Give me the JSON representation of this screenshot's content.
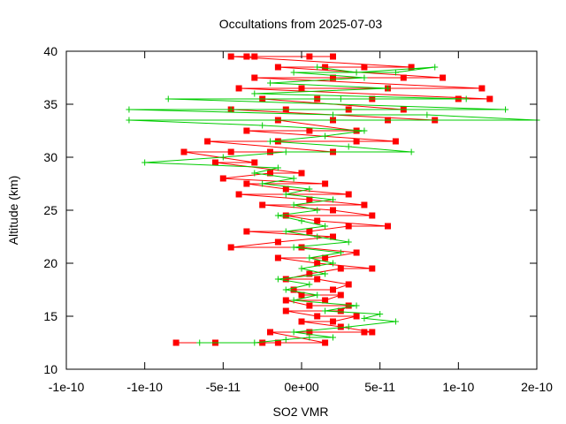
{
  "chart_data": {
    "type": "line",
    "title": "Occultations from 2025-07-03",
    "xlabel": "SO2 VMR",
    "ylabel": "Altitude (km)",
    "xlim": [
      -1.5e-10,
      1.5e-10
    ],
    "ylim": [
      10,
      40
    ],
    "x_ticks": [
      {
        "value": -1.5e-10,
        "label": "-1e-10"
      },
      {
        "value": -1e-10,
        "label": "-1e-10"
      },
      {
        "value": -5e-11,
        "label": "-5e-11"
      },
      {
        "value": 0,
        "label": "0e+00"
      },
      {
        "value": 5e-11,
        "label": "5e-11"
      },
      {
        "value": 1e-10,
        "label": "1e-10"
      },
      {
        "value": 1.5e-10,
        "label": "2e-10"
      }
    ],
    "y_ticks": [
      {
        "value": 10,
        "label": "10"
      },
      {
        "value": 15,
        "label": "15"
      },
      {
        "value": 20,
        "label": "20"
      },
      {
        "value": 25,
        "label": "25"
      },
      {
        "value": 30,
        "label": "30"
      },
      {
        "value": 35,
        "label": "35"
      },
      {
        "value": 40,
        "label": "40"
      }
    ],
    "grid": false,
    "legend": "none",
    "series": [
      {
        "color": "#ff0000",
        "marker": "square",
        "points": [
          [
            -8e-11,
            12.5
          ],
          [
            -5.5e-11,
            12.5
          ],
          [
            -2.5e-11,
            12.5
          ],
          [
            -1.5e-11,
            12.5
          ],
          [
            1.5e-11,
            12.5
          ],
          [
            -2e-11,
            13.5
          ],
          [
            5e-12,
            13.5
          ],
          [
            4e-11,
            13.5
          ],
          [
            4.5e-11,
            13.5
          ],
          [
            2.5e-11,
            14.0
          ],
          [
            0.0,
            14.5
          ],
          [
            2e-11,
            14.5
          ],
          [
            3.5e-11,
            15.0
          ],
          [
            1e-11,
            15.0
          ],
          [
            -1e-11,
            15.5
          ],
          [
            2.5e-11,
            15.5
          ],
          [
            3e-11,
            16.0
          ],
          [
            5e-12,
            16.0
          ],
          [
            -1e-11,
            16.5
          ],
          [
            1.5e-11,
            16.5
          ],
          [
            2.5e-11,
            17.0
          ],
          [
            0.0,
            17.0
          ],
          [
            -5e-12,
            17.5
          ],
          [
            2e-11,
            17.5
          ],
          [
            3e-11,
            18.0
          ],
          [
            1e-11,
            18.5
          ],
          [
            -1e-11,
            18.5
          ],
          [
            5e-12,
            19.0
          ],
          [
            2.5e-11,
            19.5
          ],
          [
            4.5e-11,
            19.5
          ],
          [
            1e-11,
            20.0
          ],
          [
            -1.5e-11,
            20.5
          ],
          [
            1.5e-11,
            20.5
          ],
          [
            3.5e-11,
            21.0
          ],
          [
            0.0,
            21.5
          ],
          [
            -4.5e-11,
            21.5
          ],
          [
            -1.5e-11,
            22.0
          ],
          [
            2e-11,
            22.5
          ],
          [
            -3.5e-11,
            23.0
          ],
          [
            5e-12,
            23.0
          ],
          [
            3e-11,
            23.5
          ],
          [
            5.5e-11,
            23.5
          ],
          [
            1e-11,
            24.0
          ],
          [
            -1e-11,
            24.5
          ],
          [
            4.5e-11,
            24.5
          ],
          [
            2e-11,
            25.0
          ],
          [
            -2.5e-11,
            25.5
          ],
          [
            4e-11,
            25.5
          ],
          [
            5e-12,
            26.0
          ],
          [
            -4e-11,
            26.5
          ],
          [
            3e-11,
            26.5
          ],
          [
            -1e-11,
            27.0
          ],
          [
            -3.5e-11,
            27.5
          ],
          [
            1.5e-11,
            27.5
          ],
          [
            -5e-11,
            28.0
          ],
          [
            -2e-11,
            28.5
          ],
          [
            0.0,
            28.5
          ],
          [
            -5.5e-11,
            29.5
          ],
          [
            -3e-11,
            29.5
          ],
          [
            -7.5e-11,
            30.5
          ],
          [
            -4.5e-11,
            30.5
          ],
          [
            -2e-11,
            30.5
          ],
          [
            2e-11,
            30.5
          ],
          [
            -6e-11,
            31.5
          ],
          [
            -1.5e-11,
            31.5
          ],
          [
            3.5e-11,
            31.5
          ],
          [
            6e-11,
            31.5
          ],
          [
            -3.5e-11,
            32.5
          ],
          [
            5e-12,
            32.5
          ],
          [
            3.5e-11,
            32.5
          ],
          [
            -1.5e-11,
            33.5
          ],
          [
            2e-11,
            33.5
          ],
          [
            5.5e-11,
            33.5
          ],
          [
            8.5e-11,
            33.5
          ],
          [
            -4.5e-11,
            34.5
          ],
          [
            -1e-11,
            34.5
          ],
          [
            3e-11,
            34.5
          ],
          [
            6.5e-11,
            34.5
          ],
          [
            -2.5e-11,
            35.5
          ],
          [
            1e-11,
            35.5
          ],
          [
            4.5e-11,
            35.5
          ],
          [
            1e-10,
            35.5
          ],
          [
            1.2e-10,
            35.5
          ],
          [
            -4e-11,
            36.5
          ],
          [
            0.0,
            36.5
          ],
          [
            5.5e-11,
            36.5
          ],
          [
            1.15e-10,
            36.5
          ],
          [
            -3e-11,
            37.5
          ],
          [
            2e-11,
            37.5
          ],
          [
            6.5e-11,
            37.5
          ],
          [
            9e-11,
            37.5
          ],
          [
            -1.5e-11,
            38.5
          ],
          [
            1.5e-11,
            38.5
          ],
          [
            4e-11,
            38.5
          ],
          [
            7e-11,
            38.5
          ],
          [
            -4.5e-11,
            39.5
          ],
          [
            -3.5e-11,
            39.5
          ],
          [
            -3e-11,
            39.5
          ],
          [
            5e-12,
            39.5
          ],
          [
            2e-11,
            39.5
          ]
        ]
      },
      {
        "color": "#00cc00",
        "marker": "plus",
        "points": [
          [
            -6.5e-11,
            12.5
          ],
          [
            -3e-11,
            12.5
          ],
          [
            -1e-11,
            12.8
          ],
          [
            5e-12,
            13.0
          ],
          [
            2e-11,
            13.0
          ],
          [
            -5e-12,
            13.5
          ],
          [
            3e-11,
            14.0
          ],
          [
            6e-11,
            14.5
          ],
          [
            4e-11,
            14.8
          ],
          [
            5e-11,
            15.2
          ],
          [
            1.5e-11,
            15.5
          ],
          [
            3.5e-11,
            16.0
          ],
          [
            -5e-12,
            16.5
          ],
          [
            1e-11,
            17.0
          ],
          [
            -1e-11,
            17.5
          ],
          [
            5e-12,
            18.0
          ],
          [
            -1.5e-11,
            18.5
          ],
          [
            1.5e-11,
            19.0
          ],
          [
            0.0,
            19.5
          ],
          [
            2e-11,
            20.0
          ],
          [
            5e-12,
            20.5
          ],
          [
            2.5e-11,
            21.0
          ],
          [
            -5e-12,
            21.5
          ],
          [
            3e-11,
            22.0
          ],
          [
            1e-11,
            22.5
          ],
          [
            -1e-11,
            23.0
          ],
          [
            1.5e-11,
            23.5
          ],
          [
            0.0,
            24.0
          ],
          [
            -1.5e-11,
            24.5
          ],
          [
            1e-11,
            25.0
          ],
          [
            -5e-12,
            25.5
          ],
          [
            2e-11,
            26.0
          ],
          [
            -1e-11,
            26.5
          ],
          [
            5e-12,
            27.0
          ],
          [
            -2.5e-11,
            27.5
          ],
          [
            -5e-12,
            28.0
          ],
          [
            -3e-11,
            28.5
          ],
          [
            -1.5e-11,
            29.0
          ],
          [
            -1e-10,
            29.5
          ],
          [
            -5e-11,
            30.0
          ],
          [
            -1e-11,
            30.5
          ],
          [
            7e-11,
            30.5
          ],
          [
            3e-11,
            31.0
          ],
          [
            -2e-11,
            31.5
          ],
          [
            1.5e-11,
            32.0
          ],
          [
            4e-11,
            32.5
          ],
          [
            -2.5e-11,
            33.0
          ],
          [
            -1.1e-10,
            33.5
          ],
          [
            1.5e-10,
            33.5
          ],
          [
            8e-11,
            34.0
          ],
          [
            2e-11,
            34.0
          ],
          [
            -1.1e-10,
            34.5
          ],
          [
            -4.5e-11,
            34.5
          ],
          [
            1.3e-10,
            34.5
          ],
          [
            -8.5e-11,
            35.5
          ],
          [
            2.5e-11,
            35.5
          ],
          [
            1.05e-10,
            35.5
          ],
          [
            -3e-11,
            36.0
          ],
          [
            5.5e-11,
            36.5
          ],
          [
            -2e-11,
            37.0
          ],
          [
            4e-11,
            37.5
          ],
          [
            -5e-12,
            38.0
          ],
          [
            6e-11,
            38.0
          ],
          [
            8.5e-11,
            38.5
          ],
          [
            3.5e-11,
            38.0
          ],
          [
            1e-11,
            38.5
          ]
        ]
      }
    ]
  }
}
